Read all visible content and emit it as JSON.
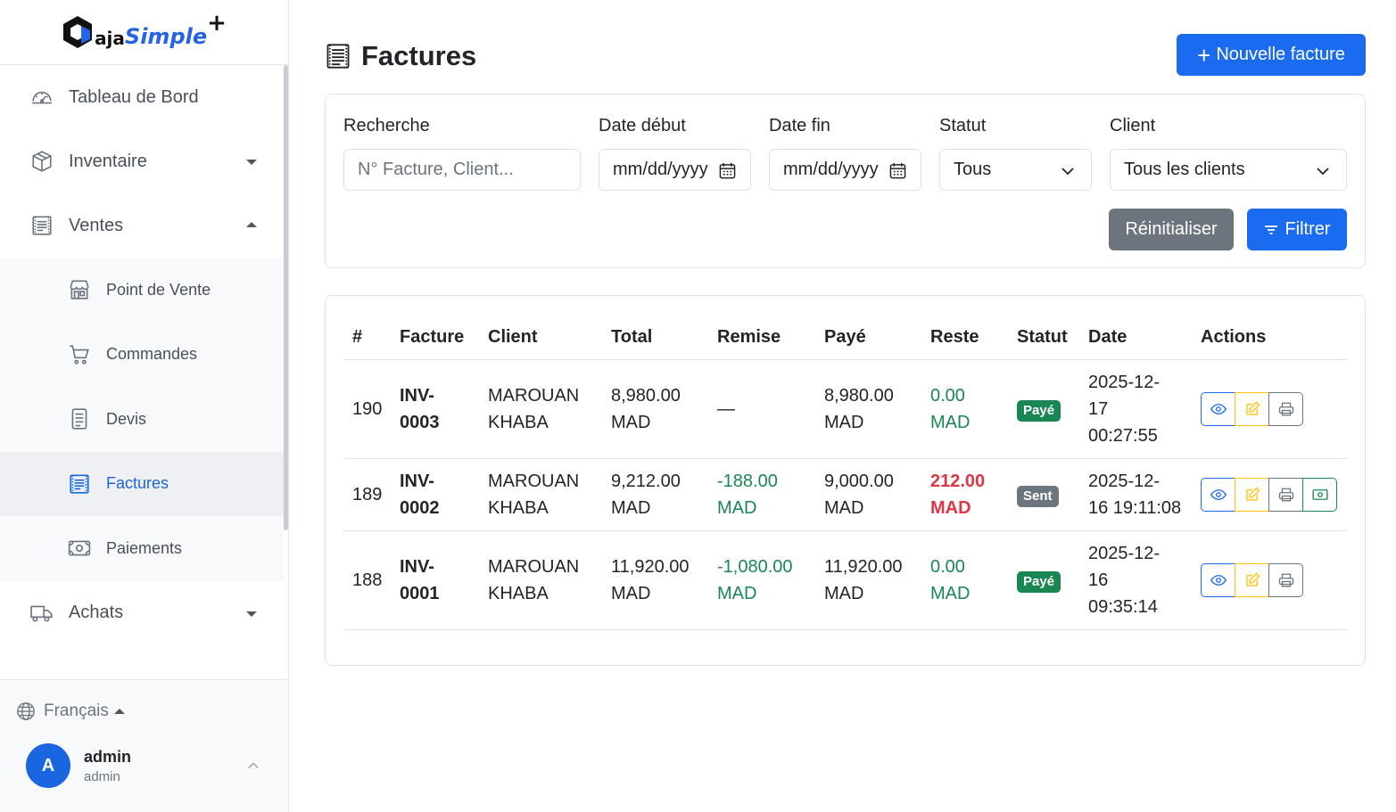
{
  "brand": {
    "part1": "aja",
    "part2": "Simple",
    "plus": "+"
  },
  "sidebar": {
    "items": [
      {
        "label": "Tableau de Bord"
      },
      {
        "label": "Inventaire"
      },
      {
        "label": "Ventes"
      },
      {
        "label": "Achats"
      }
    ],
    "sub_items": [
      {
        "label": "Point de Vente"
      },
      {
        "label": "Commandes"
      },
      {
        "label": "Devis"
      },
      {
        "label": "Factures"
      },
      {
        "label": "Paiements"
      }
    ],
    "language": "Français",
    "user": {
      "initial": "A",
      "name": "admin",
      "role": "admin"
    }
  },
  "header": {
    "title": "Factures",
    "new_button": "Nouvelle facture",
    "new_plus": "+"
  },
  "filters": {
    "search_label": "Recherche",
    "search_placeholder": "N° Facture, Client...",
    "date_start_label": "Date début",
    "date_start_placeholder": "mm/dd/yyyy",
    "date_end_label": "Date fin",
    "date_end_placeholder": "mm/dd/yyyy",
    "status_label": "Statut",
    "status_value": "Tous",
    "client_label": "Client",
    "client_value": "Tous les clients",
    "reset_button": "Réinitialiser",
    "filter_button": "Filtrer"
  },
  "table": {
    "headers": [
      "#",
      "Facture",
      "Client",
      "Total",
      "Remise",
      "Payé",
      "Reste",
      "Statut",
      "Date",
      "Actions"
    ],
    "rows": [
      {
        "id": "190",
        "facture_1": "INV-",
        "facture_2": "0003",
        "client_1": "MAROUAN",
        "client_2": "KHABA",
        "total_1": "8,980.00",
        "total_2": "MAD",
        "remise_1": "—",
        "remise_2": "",
        "paye_1": "8,980.00",
        "paye_2": "MAD",
        "reste_1": "0.00",
        "reste_2": "MAD",
        "statut": "Payé",
        "date_1": "2025-12-",
        "date_2": "17",
        "date_3": "00:27:55"
      },
      {
        "id": "189",
        "facture_1": "INV-",
        "facture_2": "0002",
        "client_1": "MAROUAN",
        "client_2": "KHABA",
        "total_1": "9,212.00",
        "total_2": "MAD",
        "remise_1": "-188.00",
        "remise_2": "MAD",
        "paye_1": "9,000.00",
        "paye_2": "MAD",
        "reste_1": "212.00",
        "reste_2": "MAD",
        "statut": "Sent",
        "date_1": "2025-12-",
        "date_2": "16 19:11:08",
        "date_3": ""
      },
      {
        "id": "188",
        "facture_1": "INV-",
        "facture_2": "0001",
        "client_1": "MAROUAN",
        "client_2": "KHABA",
        "total_1": "11,920.00",
        "total_2": "MAD",
        "remise_1": "-1,080.00",
        "remise_2": "MAD",
        "paye_1": "11,920.00",
        "paye_2": "MAD",
        "reste_1": "0.00",
        "reste_2": "MAD",
        "statut": "Payé",
        "date_1": "2025-12-",
        "date_2": "16",
        "date_3": "09:35:14"
      }
    ]
  },
  "colors": {
    "primary": "#1a6bf0",
    "success": "#198754",
    "danger": "#dc3545",
    "secondary": "#6c757d",
    "warning": "#ffc107"
  }
}
